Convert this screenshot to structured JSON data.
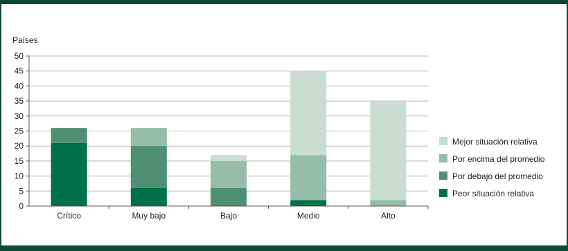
{
  "chart_data": {
    "type": "bar",
    "stacked": true,
    "ylabel": "Países",
    "xlabel": "",
    "title": "",
    "ylim": [
      0,
      50
    ],
    "yticks": [
      0,
      5,
      10,
      15,
      20,
      25,
      30,
      35,
      40,
      45,
      50
    ],
    "categories": [
      "Crítico",
      "Muy bajo",
      "Bajo",
      "Medio",
      "Alto"
    ],
    "series": [
      {
        "name": "Peor situación relativa",
        "color": "#00704a",
        "values": [
          21,
          6,
          0,
          2,
          0
        ]
      },
      {
        "name": "Por debajo del promedio",
        "color": "#4e8f76",
        "values": [
          5,
          14,
          6,
          0,
          0
        ]
      },
      {
        "name": "Por encima del promedio",
        "color": "#96bcaa",
        "values": [
          0,
          6,
          9,
          15,
          2
        ]
      },
      {
        "name": "Mejor situación relativa",
        "color": "#c9ddd2",
        "values": [
          0,
          0,
          2,
          28,
          33
        ]
      }
    ],
    "legend_position": "right",
    "grid": true
  },
  "colors": {
    "frame": "#0d4a33",
    "grid": "#b3b3b3",
    "axis": "#555555"
  }
}
